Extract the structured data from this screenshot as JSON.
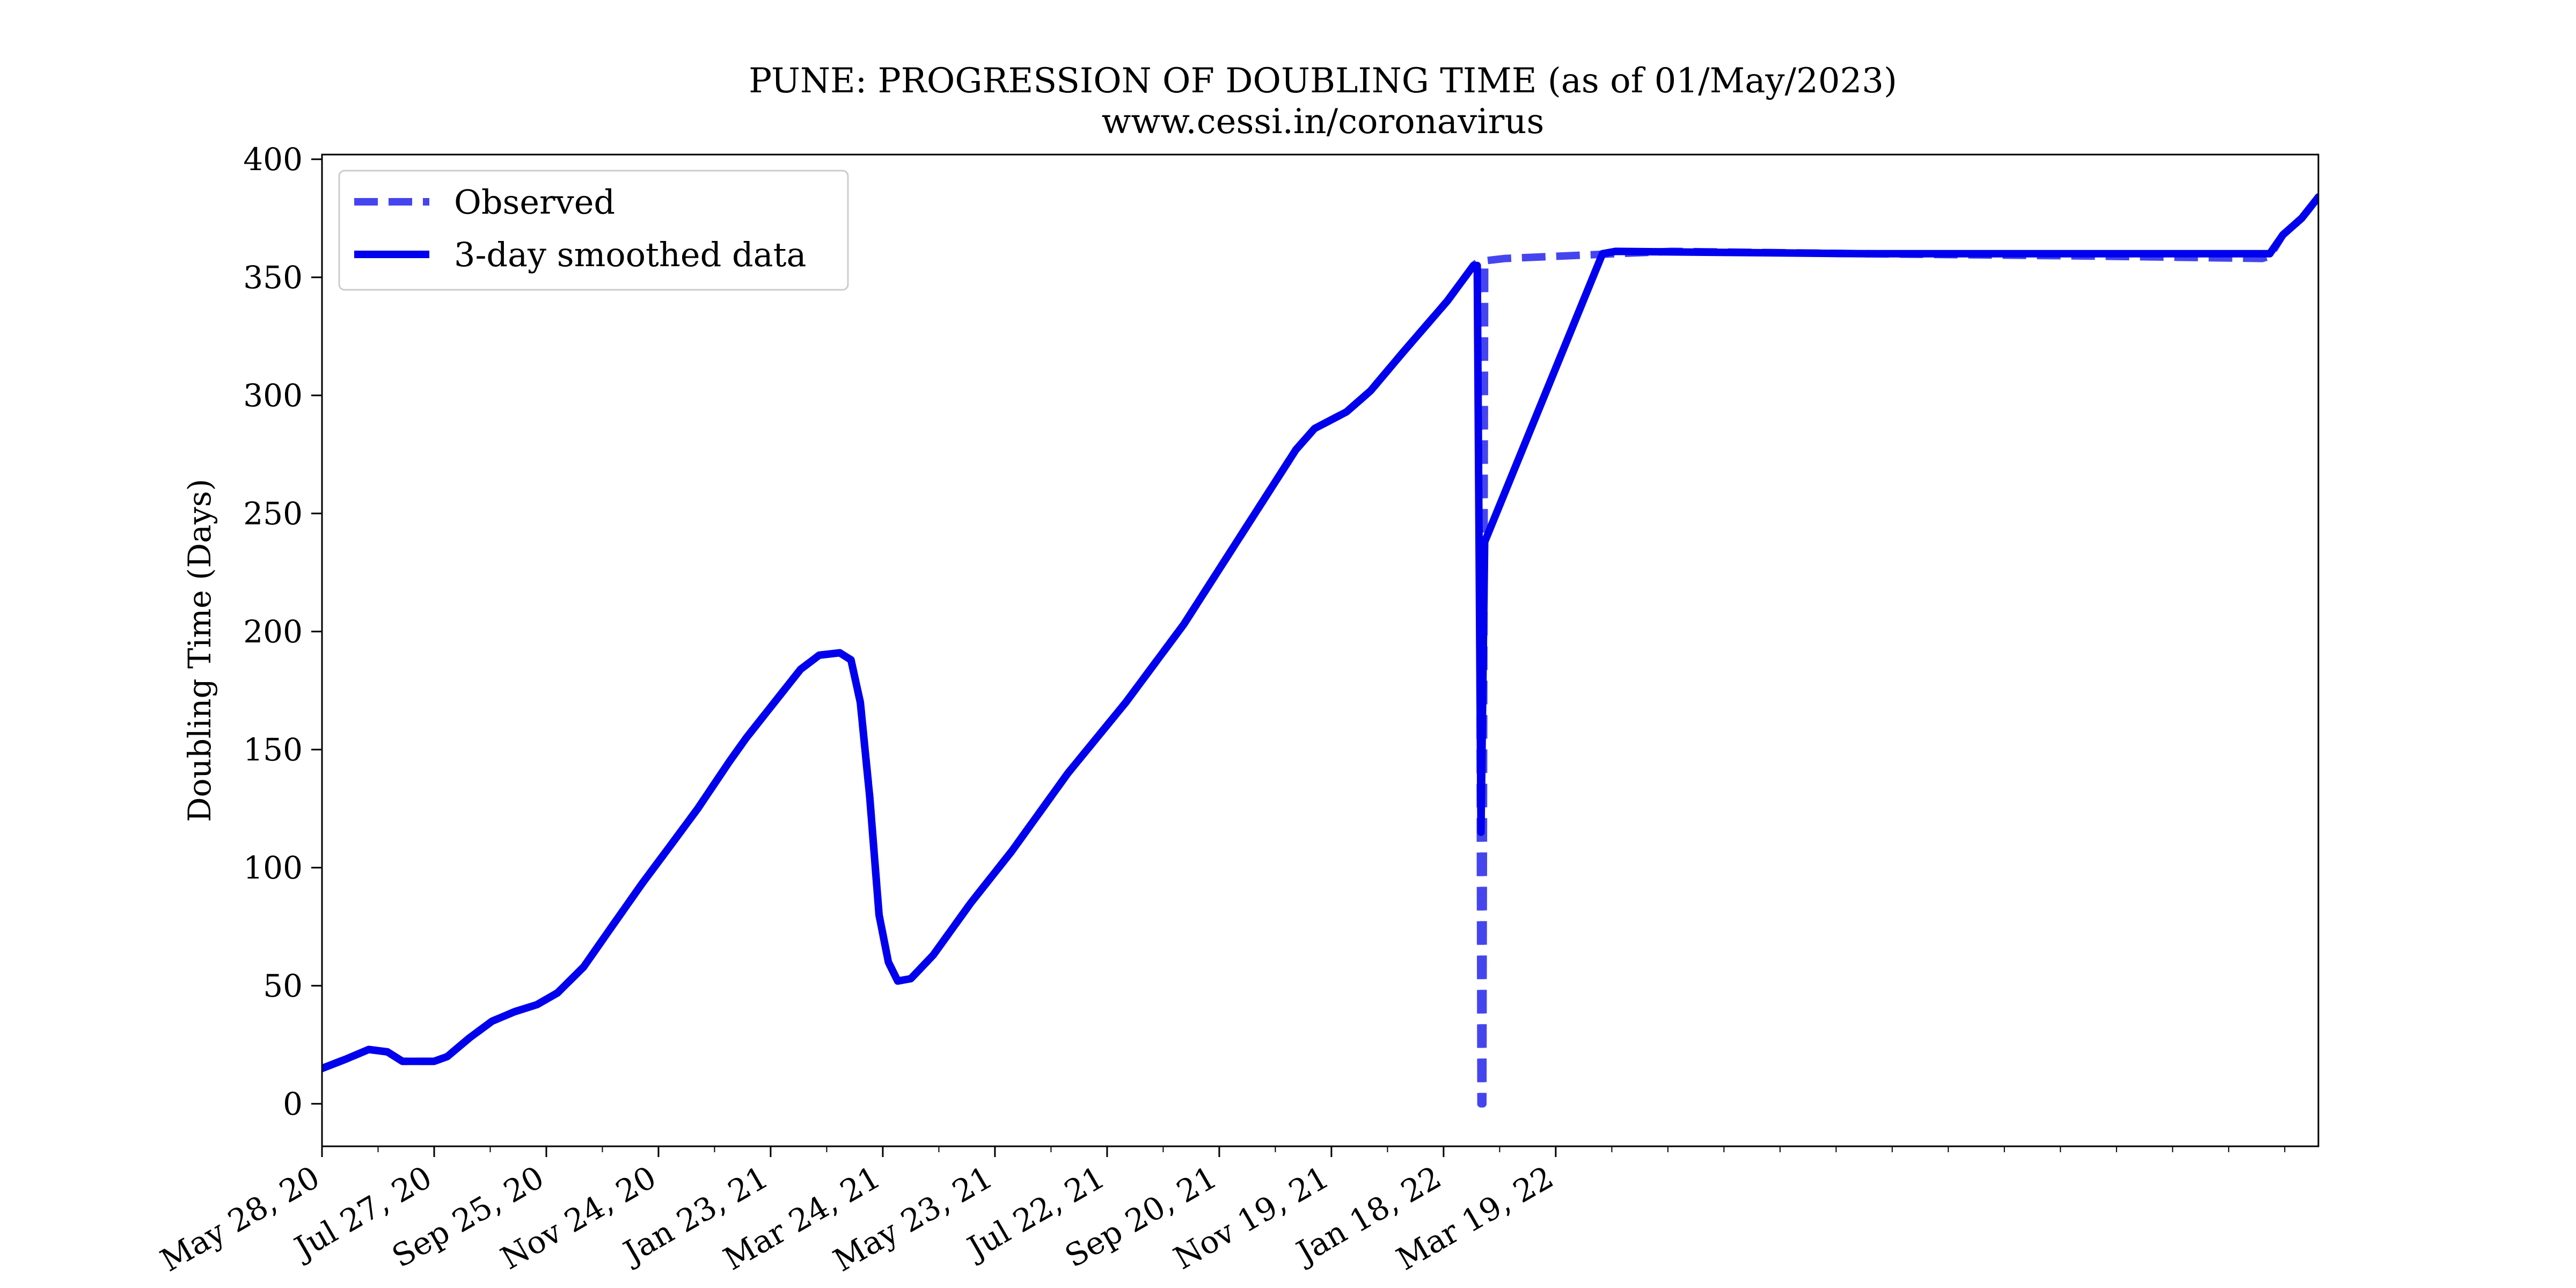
{
  "chart_data": {
    "type": "line",
    "title": "PUNE: PROGRESSION OF DOUBLING TIME (as of 01/May/2023)",
    "subtitle": "www.cessi.in/coronavirus",
    "xlabel": "",
    "ylabel": "Doubling Time (Days)",
    "x_axis_type": "date",
    "xlim": [
      "2020-05-28",
      "2023-05-01"
    ],
    "ylim": [
      -18,
      402
    ],
    "y_ticks": [
      0,
      50,
      100,
      150,
      200,
      250,
      300,
      350,
      400
    ],
    "x_ticks": [
      {
        "date": "2020-05-28",
        "label": "May 28, 20"
      },
      {
        "date": "2020-07-27",
        "label": "Jul 27, 20"
      },
      {
        "date": "2020-09-25",
        "label": "Sep 25, 20"
      },
      {
        "date": "2020-11-24",
        "label": "Nov 24, 20"
      },
      {
        "date": "2021-01-23",
        "label": "Jan 23, 21"
      },
      {
        "date": "2021-03-24",
        "label": "Mar 24, 21"
      },
      {
        "date": "2021-05-23",
        "label": "May 23, 21"
      },
      {
        "date": "2021-07-22",
        "label": "Jul 22, 21"
      },
      {
        "date": "2021-09-20",
        "label": "Sep 20, 21"
      },
      {
        "date": "2021-11-19",
        "label": "Nov 19, 21"
      },
      {
        "date": "2022-01-18",
        "label": "Jan 18, 22"
      },
      {
        "date": "2022-03-19",
        "label": "Mar 19, 22"
      }
    ],
    "legend_position": "top-left",
    "grid": false,
    "series": [
      {
        "name": "Observed",
        "style": "dashed",
        "color": "#4545f0",
        "points": [
          [
            "2020-05-28",
            15
          ],
          [
            "2020-06-10",
            19
          ],
          [
            "2020-06-22",
            23
          ],
          [
            "2020-07-02",
            22
          ],
          [
            "2020-07-10",
            18
          ],
          [
            "2020-07-20",
            18
          ],
          [
            "2020-07-27",
            18
          ],
          [
            "2020-08-03",
            20
          ],
          [
            "2020-08-15",
            28
          ],
          [
            "2020-08-27",
            35
          ],
          [
            "2020-09-08",
            39
          ],
          [
            "2020-09-20",
            42
          ],
          [
            "2020-10-01",
            47
          ],
          [
            "2020-10-15",
            58
          ],
          [
            "2020-10-30",
            75
          ],
          [
            "2020-11-15",
            93
          ],
          [
            "2020-12-01",
            110
          ],
          [
            "2020-12-15",
            125
          ],
          [
            "2021-01-01",
            145
          ],
          [
            "2021-01-10",
            155
          ],
          [
            "2021-01-25",
            170
          ],
          [
            "2021-02-08",
            184
          ],
          [
            "2021-02-18",
            190
          ],
          [
            "2021-03-01",
            191
          ],
          [
            "2021-03-07",
            188
          ],
          [
            "2021-03-12",
            170
          ],
          [
            "2021-03-17",
            130
          ],
          [
            "2021-03-22",
            80
          ],
          [
            "2021-03-27",
            60
          ],
          [
            "2021-04-01",
            52
          ],
          [
            "2021-04-08",
            53
          ],
          [
            "2021-04-20",
            63
          ],
          [
            "2021-05-10",
            85
          ],
          [
            "2021-06-01",
            107
          ],
          [
            "2021-07-01",
            140
          ],
          [
            "2021-08-01",
            170
          ],
          [
            "2021-09-01",
            203
          ],
          [
            "2021-10-01",
            240
          ],
          [
            "2021-10-31",
            277
          ],
          [
            "2021-11-10",
            286
          ],
          [
            "2021-11-27",
            293
          ],
          [
            "2021-12-10",
            302
          ],
          [
            "2021-12-27",
            318
          ],
          [
            "2022-01-20",
            340
          ],
          [
            "2022-02-03",
            355
          ],
          [
            "2022-02-06",
            357
          ],
          [
            "2022-02-07",
            0
          ],
          [
            "2022-02-08",
            0
          ],
          [
            "2022-02-09",
            357
          ],
          [
            "2022-02-20",
            358
          ],
          [
            "2022-04-20",
            360
          ],
          [
            "2022-05-20",
            361
          ],
          [
            "2022-09-01",
            360
          ],
          [
            "2023-01-01",
            359
          ],
          [
            "2023-04-01",
            358
          ],
          [
            "2023-04-05",
            359
          ],
          [
            "2023-04-12",
            368
          ],
          [
            "2023-04-22",
            375
          ],
          [
            "2023-05-01",
            384
          ]
        ]
      },
      {
        "name": "3-day smoothed data",
        "style": "solid",
        "color": "#0000ee",
        "points": [
          [
            "2020-05-28",
            15
          ],
          [
            "2020-06-10",
            19
          ],
          [
            "2020-06-22",
            23
          ],
          [
            "2020-07-02",
            22
          ],
          [
            "2020-07-10",
            18
          ],
          [
            "2020-07-20",
            18
          ],
          [
            "2020-07-27",
            18
          ],
          [
            "2020-08-03",
            20
          ],
          [
            "2020-08-15",
            28
          ],
          [
            "2020-08-27",
            35
          ],
          [
            "2020-09-08",
            39
          ],
          [
            "2020-09-20",
            42
          ],
          [
            "2020-10-01",
            47
          ],
          [
            "2020-10-15",
            58
          ],
          [
            "2020-10-30",
            75
          ],
          [
            "2020-11-15",
            93
          ],
          [
            "2020-12-01",
            110
          ],
          [
            "2020-12-15",
            125
          ],
          [
            "2021-01-01",
            145
          ],
          [
            "2021-01-10",
            155
          ],
          [
            "2021-01-25",
            170
          ],
          [
            "2021-02-08",
            184
          ],
          [
            "2021-02-18",
            190
          ],
          [
            "2021-03-01",
            191
          ],
          [
            "2021-03-07",
            188
          ],
          [
            "2021-03-12",
            170
          ],
          [
            "2021-03-17",
            130
          ],
          [
            "2021-03-22",
            80
          ],
          [
            "2021-03-27",
            60
          ],
          [
            "2021-04-01",
            52
          ],
          [
            "2021-04-08",
            53
          ],
          [
            "2021-04-20",
            63
          ],
          [
            "2021-05-10",
            85
          ],
          [
            "2021-06-01",
            107
          ],
          [
            "2021-07-01",
            140
          ],
          [
            "2021-08-01",
            170
          ],
          [
            "2021-09-01",
            203
          ],
          [
            "2021-10-01",
            240
          ],
          [
            "2021-10-31",
            277
          ],
          [
            "2021-11-10",
            286
          ],
          [
            "2021-11-27",
            293
          ],
          [
            "2021-12-10",
            302
          ],
          [
            "2021-12-27",
            318
          ],
          [
            "2022-01-20",
            340
          ],
          [
            "2022-02-03",
            355
          ],
          [
            "2022-02-05",
            355
          ],
          [
            "2022-02-07",
            115
          ],
          [
            "2022-02-09",
            238
          ],
          [
            "2022-04-13",
            360
          ],
          [
            "2022-04-20",
            361
          ],
          [
            "2022-09-01",
            360
          ],
          [
            "2023-01-01",
            360
          ],
          [
            "2023-04-01",
            360
          ],
          [
            "2023-04-05",
            360
          ],
          [
            "2023-04-12",
            368
          ],
          [
            "2023-04-22",
            375
          ],
          [
            "2023-05-01",
            384
          ]
        ]
      }
    ]
  }
}
